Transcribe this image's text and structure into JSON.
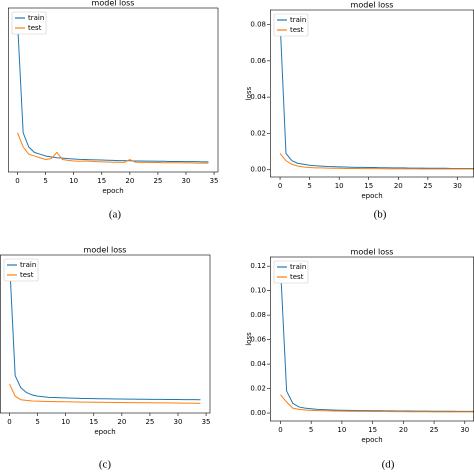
{
  "chart_data": [
    {
      "type": "line",
      "title": "model loss",
      "x_label": "epoch",
      "caption": "(a)",
      "legend": "upper left",
      "x": [
        0,
        1,
        2,
        3,
        4,
        5,
        6,
        7,
        8,
        9,
        10,
        11,
        12,
        13,
        14,
        15,
        16,
        17,
        18,
        19,
        20,
        21,
        22,
        23,
        24,
        25,
        26,
        27,
        28,
        29,
        30,
        31,
        32,
        33,
        34
      ],
      "xlim": [
        -1.7,
        35.7
      ],
      "xticks": [
        0,
        5,
        10,
        15,
        20,
        25,
        30,
        35
      ],
      "ylim": [
        -0.004,
        0.088
      ],
      "series": [
        {
          "name": "train",
          "color": "#1f77b4",
          "values": [
            0.08,
            0.018,
            0.01,
            0.007,
            0.006,
            0.005,
            0.0045,
            0.004,
            0.0038,
            0.0035,
            0.0033,
            0.0031,
            0.003,
            0.0029,
            0.0028,
            0.0027,
            0.0026,
            0.0025,
            0.0024,
            0.0024,
            0.0023,
            0.0022,
            0.0022,
            0.0021,
            0.0021,
            0.002,
            0.002,
            0.0019,
            0.0019,
            0.0019,
            0.0018,
            0.0018,
            0.0018,
            0.0017,
            0.0017
          ]
        },
        {
          "name": "test",
          "color": "#ff7f0e",
          "values": [
            0.018,
            0.01,
            0.006,
            0.005,
            0.004,
            0.003,
            0.0035,
            0.007,
            0.003,
            0.0025,
            0.0022,
            0.002,
            0.0022,
            0.002,
            0.0018,
            0.0017,
            0.0016,
            0.0015,
            0.0015,
            0.0014,
            0.003,
            0.0015,
            0.0014,
            0.0014,
            0.0013,
            0.0013,
            0.0012,
            0.0012,
            0.0012,
            0.0011,
            0.0011,
            0.0011,
            0.001,
            0.001,
            0.001
          ]
        }
      ]
    },
    {
      "type": "line",
      "title": "model loss",
      "x_label": "epoch",
      "y_label": "loss",
      "caption": "(b)",
      "legend": "upper left",
      "x": [
        0,
        1,
        2,
        3,
        4,
        5,
        6,
        7,
        8,
        9,
        10,
        11,
        12,
        13,
        14,
        15,
        16,
        17,
        18,
        19,
        20,
        21,
        22,
        23,
        24,
        25,
        26,
        27,
        28,
        29,
        30,
        31,
        32,
        33
      ],
      "xlim": [
        -1.7,
        32.8
      ],
      "xticks": [
        0,
        5,
        10,
        15,
        20,
        25,
        30
      ],
      "ylim": [
        -0.004,
        0.088
      ],
      "yticks": [
        {
          "value": 0,
          "label": "0.00"
        },
        0.02,
        0.04,
        0.06,
        0.08
      ],
      "series": [
        {
          "name": "train",
          "color": "#1f77b4",
          "values": [
            0.082,
            0.009,
            0.005,
            0.0035,
            0.003,
            0.0025,
            0.0022,
            0.002,
            0.0018,
            0.0017,
            0.0016,
            0.0015,
            0.0014,
            0.0013,
            0.0013,
            0.0012,
            0.0012,
            0.0011,
            0.0011,
            0.001,
            0.001,
            0.001,
            0.0009,
            0.0009,
            0.0009,
            0.0008,
            0.0008,
            0.0008,
            0.0008,
            0.0007,
            0.0007,
            0.0007,
            0.0007,
            0.0007
          ]
        },
        {
          "name": "test",
          "color": "#ff7f0e",
          "values": [
            0.009,
            0.005,
            0.003,
            0.002,
            0.0015,
            0.0012,
            0.001,
            0.001,
            0.0009,
            0.0008,
            0.0008,
            0.0007,
            0.0007,
            0.0007,
            0.0006,
            0.0006,
            0.0006,
            0.0006,
            0.0005,
            0.0005,
            0.0005,
            0.0005,
            0.0005,
            0.0005,
            0.0004,
            0.0004,
            0.0004,
            0.0004,
            0.0004,
            0.0004,
            0.0004,
            0.0004,
            0.0004,
            0.0004
          ]
        }
      ]
    },
    {
      "type": "line",
      "title": "model loss",
      "x_label": "epoch",
      "caption": "(c)",
      "legend": "upper left",
      "x": [
        0,
        1,
        2,
        3,
        4,
        5,
        6,
        7,
        8,
        9,
        10,
        11,
        12,
        13,
        14,
        15,
        16,
        17,
        18,
        19,
        20,
        21,
        22,
        23,
        24,
        25,
        26,
        27,
        28,
        29,
        30,
        31,
        32,
        33,
        34
      ],
      "xlim": [
        -1.7,
        35.7
      ],
      "xticks": [
        0,
        5,
        10,
        15,
        20,
        25,
        30,
        35
      ],
      "ylim": [
        -0.006,
        0.125
      ],
      "series": [
        {
          "name": "train",
          "color": "#1f77b4",
          "values": [
            0.12,
            0.025,
            0.015,
            0.011,
            0.009,
            0.008,
            0.0075,
            0.007,
            0.0068,
            0.0066,
            0.0065,
            0.0063,
            0.0062,
            0.006,
            0.006,
            0.0059,
            0.0058,
            0.0058,
            0.0057,
            0.0056,
            0.0056,
            0.0055,
            0.0055,
            0.0054,
            0.0054,
            0.0053,
            0.0053,
            0.0053,
            0.0052,
            0.0052,
            0.0052,
            0.0051,
            0.0051,
            0.0051,
            0.005
          ]
        },
        {
          "name": "test",
          "color": "#ff7f0e",
          "values": [
            0.018,
            0.008,
            0.005,
            0.0045,
            0.004,
            0.0038,
            0.0036,
            0.0035,
            0.0034,
            0.0033,
            0.0033,
            0.0032,
            0.0031,
            0.003,
            0.003,
            0.0029,
            0.0029,
            0.0028,
            0.0028,
            0.0027,
            0.0027,
            0.0026,
            0.0026,
            0.0025,
            0.0025,
            0.0025,
            0.0024,
            0.0024,
            0.0024,
            0.0023,
            0.0023,
            0.0022,
            0.0022,
            0.0021,
            0.002
          ]
        }
      ]
    },
    {
      "type": "line",
      "title": "model loss",
      "x_label": "epoch",
      "y_label": "loss",
      "caption": "(d)",
      "legend": "upper left",
      "x": [
        0,
        1,
        2,
        3,
        4,
        5,
        6,
        7,
        8,
        9,
        10,
        11,
        12,
        13,
        14,
        15,
        16,
        17,
        18,
        19,
        20,
        21,
        22,
        23,
        24,
        25,
        26,
        27,
        28,
        29,
        30,
        31,
        32
      ],
      "xlim": [
        -1.7,
        31.5
      ],
      "xticks": [
        0,
        5,
        10,
        15,
        20,
        25,
        30
      ],
      "ylim": [
        -0.0065,
        0.1275
      ],
      "yticks": [
        {
          "value": 0,
          "label": "0.00"
        },
        0.02,
        0.04,
        0.06,
        0.08,
        {
          "value": 0.1,
          "label": "0.10"
        },
        0.12
      ],
      "series": [
        {
          "name": "train",
          "color": "#1f77b4",
          "values": [
            0.12,
            0.018,
            0.008,
            0.005,
            0.004,
            0.0035,
            0.003,
            0.0028,
            0.0026,
            0.0024,
            0.0023,
            0.0022,
            0.0021,
            0.002,
            0.002,
            0.0019,
            0.0019,
            0.0018,
            0.0018,
            0.0017,
            0.0017,
            0.0017,
            0.0016,
            0.0016,
            0.0016,
            0.0015,
            0.0015,
            0.0015,
            0.0015,
            0.0014,
            0.0014,
            0.0014,
            0.0014
          ]
        },
        {
          "name": "test",
          "color": "#ff7f0e",
          "values": [
            0.015,
            0.009,
            0.004,
            0.003,
            0.0025,
            0.0022,
            0.002,
            0.0019,
            0.0018,
            0.0017,
            0.0016,
            0.0015,
            0.0015,
            0.0014,
            0.0014,
            0.0013,
            0.0013,
            0.0013,
            0.0012,
            0.0012,
            0.0012,
            0.0011,
            0.0011,
            0.0011,
            0.0011,
            0.001,
            0.001,
            0.001,
            0.001,
            0.001,
            0.001,
            0.001,
            0.001
          ]
        }
      ]
    }
  ]
}
